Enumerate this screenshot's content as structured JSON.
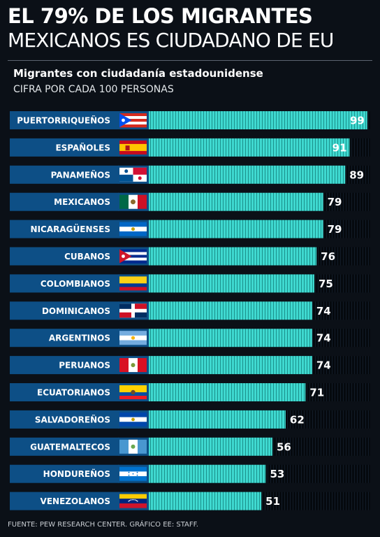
{
  "header": {
    "title_line1": "EL 79% DE LOS MIGRANTES",
    "title_line2": "MEXICANOS ES CIUDADANO DE EU",
    "subtitle": "Migrantes con ciudadanía estadounidense",
    "unit_note": "CIFRA POR CADA 100 PERSONAS"
  },
  "footer": {
    "source": "FUENTE: PEW RESEARCH CENTER. GRÁFICO EE: STAFF."
  },
  "colors": {
    "background": "#0b1017",
    "label_box": "#0d4f86",
    "bar_fill": "#3fd9d0",
    "track": "#05090e"
  },
  "chart_data": {
    "type": "bar",
    "orientation": "horizontal",
    "title": "Migrantes con ciudadanía estadounidense",
    "subtitle": "CIFRA POR CADA 100 PERSONAS",
    "xlim": [
      0,
      100
    ],
    "categories": [
      "PUERTORRIQUEÑOS",
      "ESPAÑOLES",
      "PANAMEÑOS",
      "MEXICANOS",
      "NICARAGÜENSES",
      "CUBANOS",
      "COLOMBIANOS",
      "DOMINICANOS",
      "ARGENTINOS",
      "PERUANOS",
      "ECUATORIANOS",
      "SALVADOREÑOS",
      "GUATEMALTECOS",
      "HONDUREÑOS",
      "VENEZOLANOS"
    ],
    "values": [
      99,
      91,
      89,
      79,
      79,
      76,
      75,
      74,
      74,
      74,
      71,
      62,
      56,
      53,
      51
    ],
    "flag_icons": [
      "puerto-rico-flag-icon",
      "spain-flag-icon",
      "panama-flag-icon",
      "mexico-flag-icon",
      "nicaragua-flag-icon",
      "cuba-flag-icon",
      "colombia-flag-icon",
      "dominican-republic-flag-icon",
      "argentina-flag-icon",
      "peru-flag-icon",
      "ecuador-flag-icon",
      "el-salvador-flag-icon",
      "guatemala-flag-icon",
      "honduras-flag-icon",
      "venezuela-flag-icon"
    ]
  }
}
